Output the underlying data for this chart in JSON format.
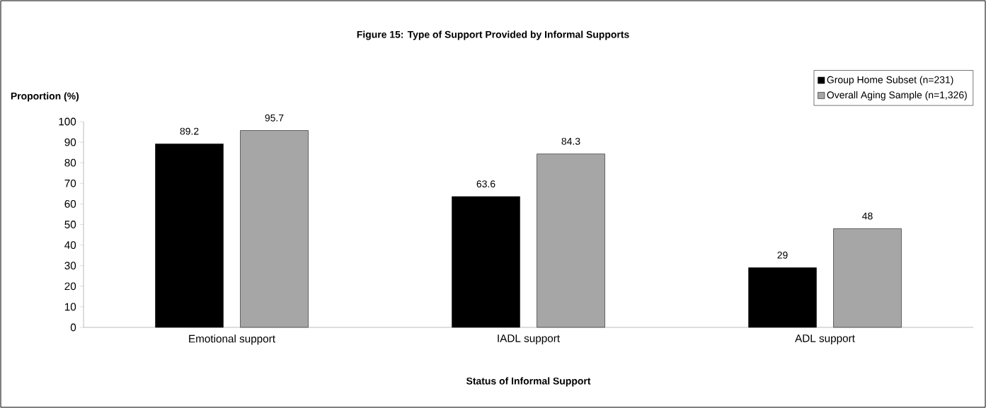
{
  "chart_data": {
    "type": "bar",
    "title": "Figure 15: Type of Support Provided by Informal Supports",
    "xlabel": "Status of Informal Support",
    "ylabel": "Proportion (%)",
    "categories": [
      "Emotional support",
      "IADL support",
      "ADL support"
    ],
    "series": [
      {
        "name": "Group Home Subset (n=231)",
        "color": "#000000",
        "values": [
          89.2,
          63.6,
          29
        ]
      },
      {
        "name": "Overall Aging Sample (n=1,326)",
        "color": "#a6a6a6",
        "values": [
          95.7,
          84.3,
          48
        ]
      }
    ],
    "ylim": [
      0,
      100
    ],
    "yticks": [
      0,
      10,
      20,
      30,
      40,
      50,
      60,
      70,
      80,
      90,
      100
    ],
    "data_labels": true,
    "legend": "top right"
  }
}
